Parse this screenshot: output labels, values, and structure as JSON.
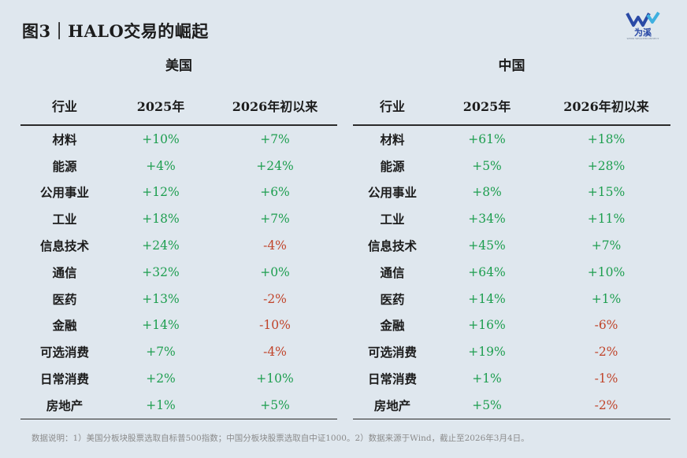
{
  "title": "图3｜HALO交易的崛起",
  "logo": {
    "text": "为溪",
    "subtext": "WEIXI WEALTHCONNECT"
  },
  "colors": {
    "positive": "#1d9e4f",
    "negative": "#c0442a",
    "background": "#dfe7ee"
  },
  "chart_data": [
    {
      "type": "table",
      "title": "美国",
      "columns": [
        "行业",
        "2025年",
        "2026年初以来"
      ],
      "rows": [
        [
          "材料",
          "+10%",
          "+7%"
        ],
        [
          "能源",
          "+4%",
          "+24%"
        ],
        [
          "公用事业",
          "+12%",
          "+6%"
        ],
        [
          "工业",
          "+18%",
          "+7%"
        ],
        [
          "信息技术",
          "+24%",
          "-4%"
        ],
        [
          "通信",
          "+32%",
          "+0%"
        ],
        [
          "医药",
          "+13%",
          "-2%"
        ],
        [
          "金融",
          "+14%",
          "-10%"
        ],
        [
          "可选消费",
          "+7%",
          "-4%"
        ],
        [
          "日常消费",
          "+2%",
          "+10%"
        ],
        [
          "房地产",
          "+1%",
          "+5%"
        ]
      ]
    },
    {
      "type": "table",
      "title": "中国",
      "columns": [
        "行业",
        "2025年",
        "2026年初以来"
      ],
      "rows": [
        [
          "材料",
          "+61%",
          "+18%"
        ],
        [
          "能源",
          "+5%",
          "+28%"
        ],
        [
          "公用事业",
          "+8%",
          "+15%"
        ],
        [
          "工业",
          "+34%",
          "+11%"
        ],
        [
          "信息技术",
          "+45%",
          "+7%"
        ],
        [
          "通信",
          "+64%",
          "+10%"
        ],
        [
          "医药",
          "+14%",
          "+1%"
        ],
        [
          "金融",
          "+16%",
          "-6%"
        ],
        [
          "可选消费",
          "+19%",
          "-2%"
        ],
        [
          "日常消费",
          "+1%",
          "-1%"
        ],
        [
          "房地产",
          "+5%",
          "-2%"
        ]
      ]
    }
  ],
  "footnote": "数据说明：1）美国分板块股票选取自标普500指数；中国分板块股票选取自中证1000。2）数据来源于Wind，截止至2026年3月4日。"
}
